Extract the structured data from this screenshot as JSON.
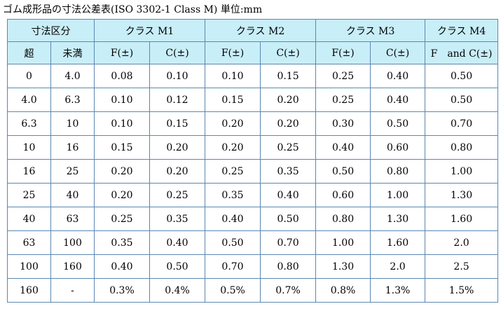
{
  "caption": "ゴム成形品の寸法公差表(ISO 3302-1 Class M) 単位:mm",
  "colors": {
    "header_bg": "#c8eef8",
    "border": "#5b87b0",
    "body_bg": "#ffffff"
  },
  "header": {
    "group_size": "寸法区分",
    "group_m1": "クラス M1",
    "group_m2": "クラス M2",
    "group_m3": "クラス M3",
    "group_m4": "クラス M4",
    "col_over": "超",
    "col_under": "未満",
    "m1_f": "F(±)",
    "m1_c": "C(±)",
    "m2_f": "F(±)",
    "m2_c": "C(±)",
    "m3_f": "F(±)",
    "m3_c": "C(±)",
    "m4_fc": "F　and C(±)"
  },
  "rows": [
    [
      "0",
      "4.0",
      "0.08",
      "0.10",
      "0.10",
      "0.15",
      "0.25",
      "0.40",
      "0.50"
    ],
    [
      "4.0",
      "6.3",
      "0.10",
      "0.12",
      "0.15",
      "0.20",
      "0.25",
      "0.40",
      "0.50"
    ],
    [
      "6.3",
      "10",
      "0.10",
      "0.15",
      "0.20",
      "0.20",
      "0.30",
      "0.50",
      "0.70"
    ],
    [
      "10",
      "16",
      "0.15",
      "0.20",
      "0.20",
      "0.25",
      "0.40",
      "0.60",
      "0.80"
    ],
    [
      "16",
      "25",
      "0.20",
      "0.20",
      "0.25",
      "0.35",
      "0.50",
      "0.80",
      "1.00"
    ],
    [
      "25",
      "40",
      "0.20",
      "0.25",
      "0.35",
      "0.40",
      "0.60",
      "1.00",
      "1.30"
    ],
    [
      "40",
      "63",
      "0.25",
      "0.35",
      "0.40",
      "0.50",
      "0.80",
      "1.30",
      "1.60"
    ],
    [
      "63",
      "100",
      "0.35",
      "0.40",
      "0.50",
      "0.70",
      "1.00",
      "1.60",
      "2.0"
    ],
    [
      "100",
      "160",
      "0.40",
      "0.50",
      "0.70",
      "0.80",
      "1.30",
      "2.0",
      "2.5"
    ],
    [
      "160",
      "-",
      "0.3%",
      "0.4%",
      "0.5%",
      "0.7%",
      "0.8%",
      "1.3%",
      "1.5%"
    ]
  ]
}
